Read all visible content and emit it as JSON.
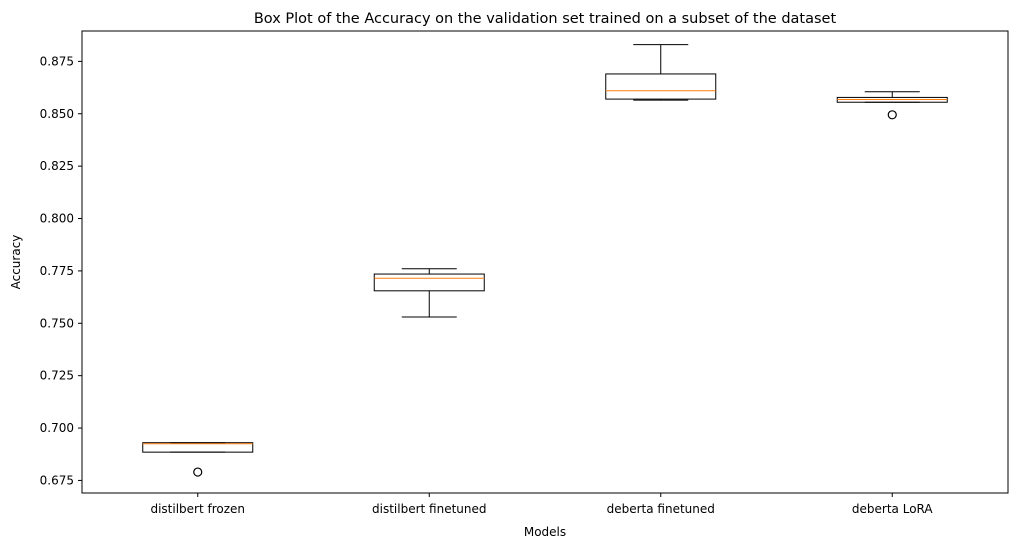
{
  "chart_data": {
    "type": "box",
    "title": "Box Plot of the Accuracy on the validation set trained on a subset of the dataset",
    "xlabel": "Models",
    "ylabel": "Accuracy",
    "ylim": [
      0.669,
      0.8895
    ],
    "yticks": [
      "0.675",
      "0.700",
      "0.725",
      "0.750",
      "0.775",
      "0.800",
      "0.825",
      "0.850",
      "0.875"
    ],
    "grid": false,
    "colors": {
      "box": "#000000",
      "median": "#ff7f0e",
      "outlier": "#000000"
    },
    "categories": [
      "distilbert frozen",
      "distilbert finetuned",
      "deberta finetuned",
      "deberta LoRA"
    ],
    "boxes": [
      {
        "category": "distilbert frozen",
        "whisker_low": 0.6885,
        "q1": 0.6885,
        "median": 0.6925,
        "q3": 0.693,
        "whisker_high": 0.693,
        "outliers": [
          0.679
        ]
      },
      {
        "category": "distilbert finetuned",
        "whisker_low": 0.753,
        "q1": 0.7655,
        "median": 0.7715,
        "q3": 0.7735,
        "whisker_high": 0.776,
        "outliers": []
      },
      {
        "category": "deberta finetuned",
        "whisker_low": 0.8565,
        "q1": 0.857,
        "median": 0.861,
        "q3": 0.869,
        "whisker_high": 0.883,
        "outliers": []
      },
      {
        "category": "deberta LoRA",
        "whisker_low": 0.8555,
        "q1": 0.8555,
        "median": 0.8568,
        "q3": 0.8578,
        "whisker_high": 0.8605,
        "outliers": [
          0.8495
        ]
      }
    ]
  }
}
